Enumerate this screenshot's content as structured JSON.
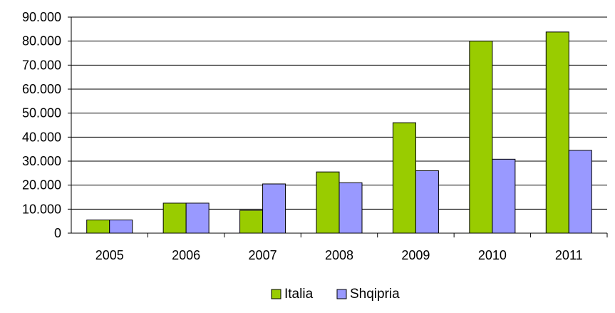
{
  "chart_data": {
    "type": "bar",
    "title": "",
    "xlabel": "",
    "ylabel": "",
    "categories": [
      "2005",
      "2006",
      "2007",
      "2008",
      "2009",
      "2010",
      "2011"
    ],
    "series": [
      {
        "name": "Italia",
        "color": "#99cc00",
        "values": [
          5500,
          12500,
          9500,
          25500,
          46000,
          80000,
          83800
        ]
      },
      {
        "name": "Shqipria",
        "color": "#9999ff",
        "values": [
          5500,
          12500,
          20500,
          21000,
          26000,
          30800,
          34500
        ]
      }
    ],
    "ylim": [
      0,
      90000
    ],
    "yticks": [
      0,
      10000,
      20000,
      30000,
      40000,
      50000,
      60000,
      70000,
      80000,
      90000
    ],
    "ytick_labels": [
      "0",
      "10.000",
      "20.000",
      "30.000",
      "40.000",
      "50.000",
      "60.000",
      "70.000",
      "80.000",
      "90.000"
    ],
    "grid": true,
    "legend_position": "bottom"
  }
}
